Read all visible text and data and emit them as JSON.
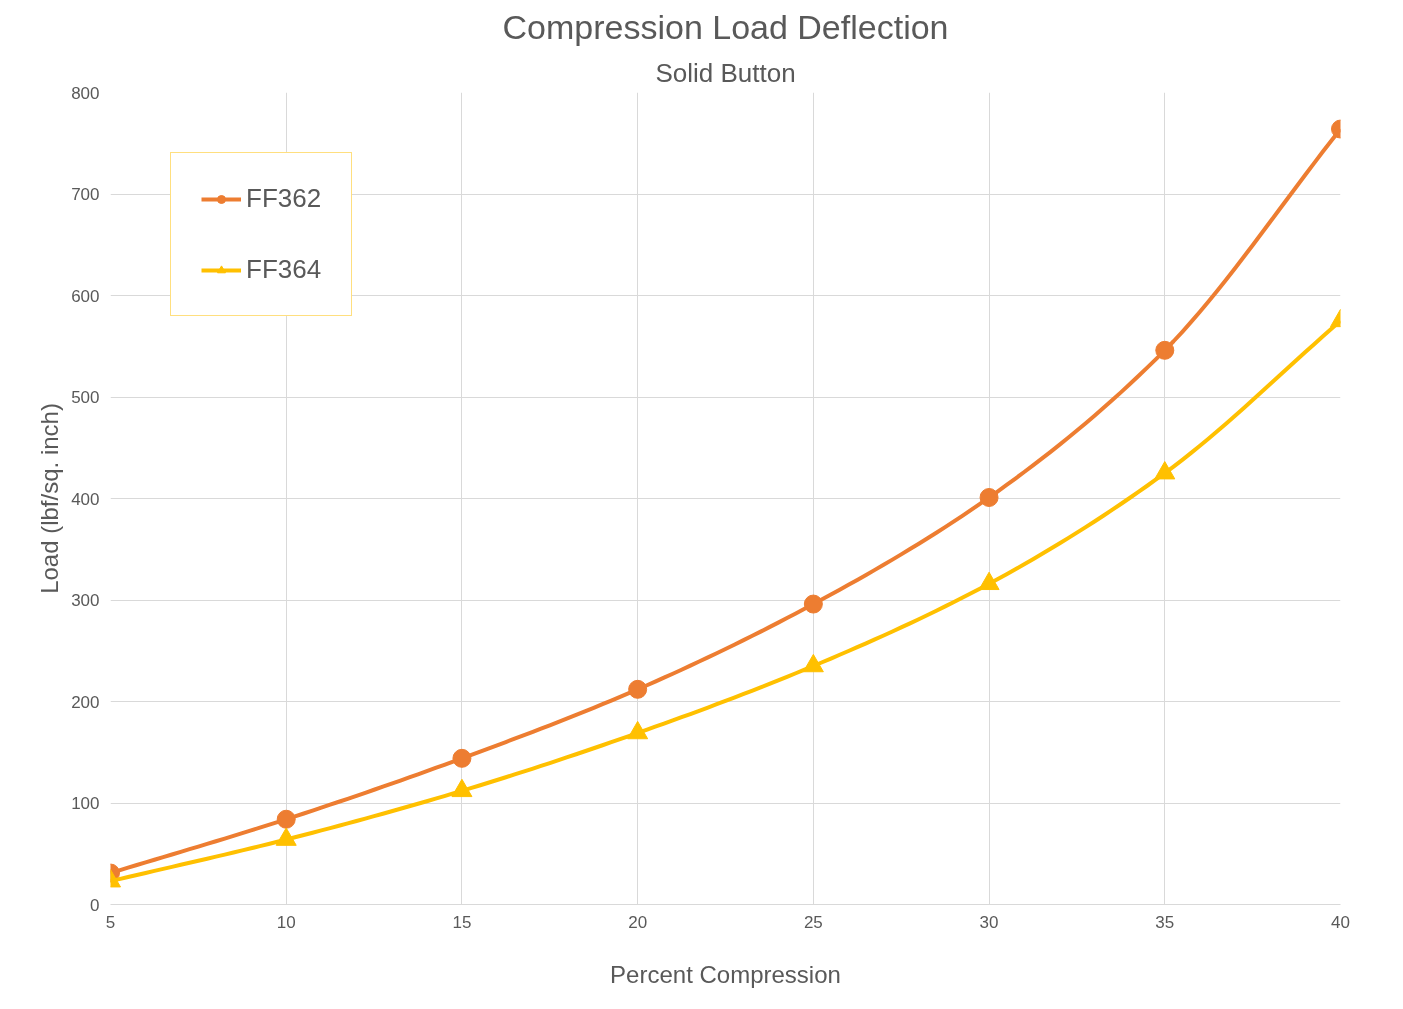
{
  "chart_data": {
    "type": "line",
    "title": "Compression Load Deflection",
    "subtitle": "Solid Button",
    "xlabel": "Percent Compression",
    "ylabel": "Load (lbf/sq. inch)",
    "x": [
      5,
      10,
      15,
      20,
      25,
      30,
      35,
      40
    ],
    "series": [
      {
        "name": "FF362",
        "color": "#ed7d31",
        "marker": "circle",
        "values": [
          31,
          84,
          144,
          212,
          296,
          401,
          546,
          764
        ]
      },
      {
        "name": "FF364",
        "color": "#ffc000",
        "marker": "triangle",
        "values": [
          23,
          64,
          112,
          169,
          235,
          316,
          425,
          575
        ]
      }
    ],
    "xlim": [
      5,
      40
    ],
    "xticks": [
      5,
      10,
      15,
      20,
      25,
      30,
      35,
      40
    ],
    "ylim": [
      0,
      800
    ],
    "yticks": [
      0,
      100,
      200,
      300,
      400,
      500,
      600,
      700,
      800
    ],
    "grid": true,
    "legend": "top left",
    "line_style": "solid"
  }
}
